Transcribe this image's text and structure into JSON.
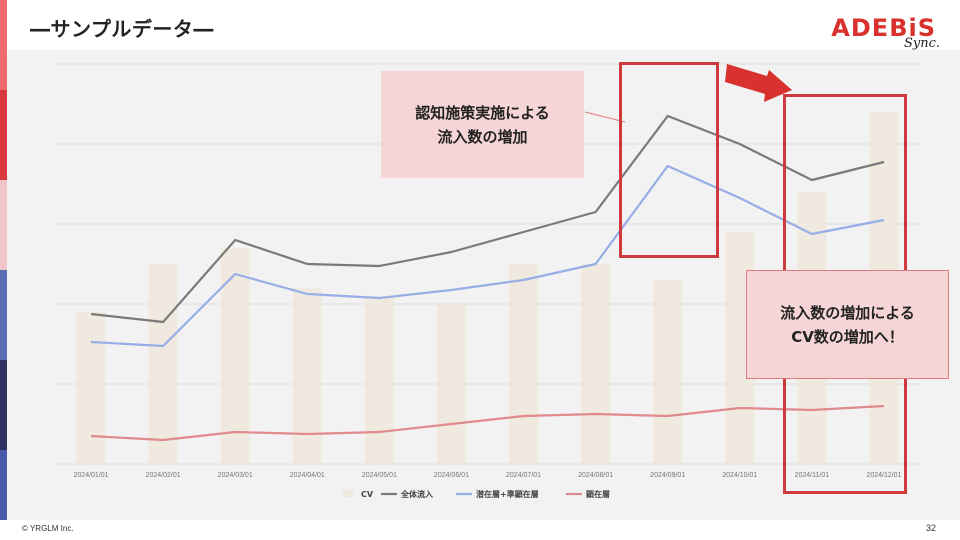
{
  "slide": {
    "title": "―サンプルデータ―",
    "logo_main": "ADEBiS",
    "logo_sub": "Sync.",
    "copyright": "© YRGLM Inc.",
    "page_number": "32",
    "side_strip_colors": [
      "#ee6b6e",
      "#d9393c",
      "#f0c6c8",
      "#5b6fb8",
      "#2f3163",
      "#4a5aa8"
    ]
  },
  "annotations": {
    "callout_1": "認知施策実施による\n流入数の増加",
    "callout_2": "流入数の増加による\nCV数の増加へ！",
    "highlight_color": "#cf3b3d",
    "callout_fill": "#f6d5d7"
  },
  "chart_data": {
    "type": "bar",
    "categories": [
      "2024/01/01",
      "2024/02/01",
      "2024/03/01",
      "2024/04/01",
      "2024/05/01",
      "2024/06/01",
      "2024/07/01",
      "2024/08/01",
      "2024/09/01",
      "2024/10/01",
      "2024/11/01",
      "2024/12/01"
    ],
    "ylim": [
      0,
      100
    ],
    "grid": true,
    "legend_position": "bottom",
    "series": [
      {
        "name": "CV",
        "type": "bar",
        "color": "#f0e9df",
        "values": [
          38,
          50,
          54,
          44,
          42,
          40,
          50,
          50,
          46,
          58,
          68,
          88
        ]
      },
      {
        "name": "全体流入",
        "type": "line",
        "color": "#7a7a7a",
        "values": [
          37.5,
          35.5,
          56,
          50,
          49.5,
          53,
          58,
          63,
          87,
          80,
          71,
          75.5
        ]
      },
      {
        "name": "潜在層+準顕在層",
        "type": "line",
        "color": "#97ade6",
        "values": [
          30.5,
          29.5,
          47.5,
          42.5,
          41.5,
          43.5,
          46,
          50,
          74.5,
          66.5,
          57.5,
          61
        ]
      },
      {
        "name": "顕在層",
        "type": "line",
        "color": "#e08a8c",
        "values": [
          7,
          6,
          8,
          7.5,
          8,
          10,
          12,
          12.5,
          12,
          14,
          13.5,
          14.5
        ]
      }
    ]
  }
}
